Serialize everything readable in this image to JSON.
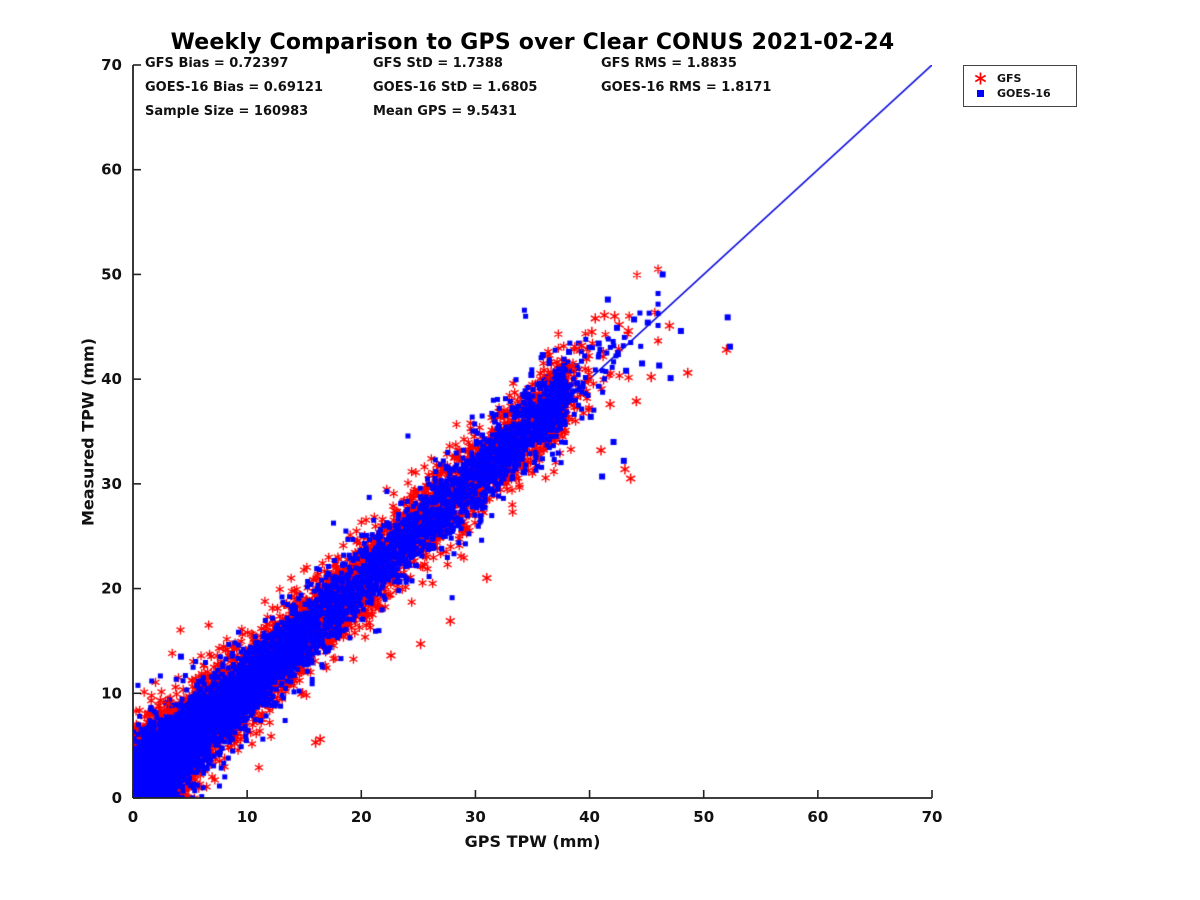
{
  "background": "#ffffff",
  "chart_data": {
    "type": "scatter",
    "title": "Weekly Comparison to GPS over Clear CONUS 2021-02-24",
    "xlabel": "GPS TPW (mm)",
    "ylabel": "Measured TPW (mm)",
    "xlim": [
      0,
      70
    ],
    "ylim": [
      0,
      70
    ],
    "xticks": [
      0,
      10,
      20,
      30,
      40,
      50,
      60,
      70
    ],
    "yticks": [
      0,
      10,
      20,
      30,
      40,
      50,
      60,
      70
    ],
    "grid": false,
    "legend_position": "top-right-outside",
    "sample_size": 160983,
    "mean_gps": 9.5431,
    "stats_text": [
      "GFS Bias = 0.72397",
      "GFS StD = 1.7388",
      "GFS RMS = 1.8835",
      "GOES-16 Bias = 0.69121",
      "GOES-16 StD = 1.6805",
      "GOES-16 RMS = 1.8171",
      "Sample Size = 160983",
      "Mean GPS = 9.5431"
    ],
    "reference_line": {
      "type": "identity",
      "from": [
        0,
        0
      ],
      "to": [
        70,
        70
      ],
      "color": "#0000DD"
    },
    "series": [
      {
        "name": "GFS",
        "marker": "asterisk",
        "color": "#FF0000",
        "bias": 0.72397,
        "std": 1.7388,
        "rms": 1.8835,
        "outliers": [
          [
            2.4,
            9.3
          ],
          [
            3.1,
            9.0
          ],
          [
            16.0,
            5.3
          ],
          [
            16.4,
            5.6
          ],
          [
            22.6,
            13.6
          ],
          [
            25.2,
            14.7
          ],
          [
            27.8,
            16.9
          ],
          [
            31.0,
            21.0
          ],
          [
            40.5,
            45.8
          ],
          [
            41.3,
            46.1
          ],
          [
            42.2,
            46.0
          ],
          [
            42.6,
            45.2
          ],
          [
            43.4,
            44.6
          ],
          [
            47.0,
            45.1
          ],
          [
            48.6,
            40.6
          ],
          [
            52.0,
            42.8
          ],
          [
            41.8,
            37.6
          ],
          [
            43.1,
            31.4
          ],
          [
            43.6,
            30.5
          ],
          [
            41.0,
            33.2
          ],
          [
            44.1,
            37.9
          ],
          [
            45.4,
            40.2
          ],
          [
            39.3,
            43.2
          ],
          [
            38.5,
            41.2
          ],
          [
            40.2,
            44.5
          ],
          [
            36.4,
            40.1
          ]
        ]
      },
      {
        "name": "GOES-16",
        "marker": "square",
        "color": "#0000FF",
        "bias": 0.69121,
        "std": 1.6805,
        "rms": 1.8171,
        "outliers": [
          [
            4.2,
            13.5
          ],
          [
            41.6,
            47.6
          ],
          [
            46.4,
            50.0
          ],
          [
            43.9,
            45.7
          ],
          [
            45.1,
            45.4
          ],
          [
            52.1,
            45.9
          ],
          [
            52.3,
            43.1
          ],
          [
            48.0,
            44.6
          ],
          [
            46.1,
            41.3
          ],
          [
            43.2,
            40.8
          ],
          [
            44.6,
            41.5
          ],
          [
            42.1,
            34.0
          ],
          [
            43.0,
            32.2
          ],
          [
            41.1,
            30.7
          ],
          [
            40.1,
            36.4
          ],
          [
            37.6,
            40.8
          ],
          [
            35.9,
            42.3
          ],
          [
            34.9,
            40.4
          ],
          [
            47.1,
            40.1
          ],
          [
            42.4,
            44.9
          ],
          [
            40.8,
            43.4
          ],
          [
            38.2,
            42.6
          ]
        ]
      }
    ],
    "point_cloud": {
      "seed": 1234,
      "rendered_points_per_series": 8200,
      "model": "y = x + bias + N(0, std)",
      "x_mixture": [
        {
          "type": "exponential",
          "weight": 0.58,
          "mean": 4.2,
          "max": 69
        },
        {
          "type": "uniform",
          "weight": 0.4,
          "min": 0,
          "max": 38
        },
        {
          "type": "exponential_shifted",
          "weight": 0.02,
          "shift": 36,
          "mean": 2.5,
          "max": 46
        }
      ],
      "noise_scale": [
        1.18,
        1.0
      ],
      "outlier_fraction": 0.035,
      "outlier_std": 4.0
    }
  }
}
